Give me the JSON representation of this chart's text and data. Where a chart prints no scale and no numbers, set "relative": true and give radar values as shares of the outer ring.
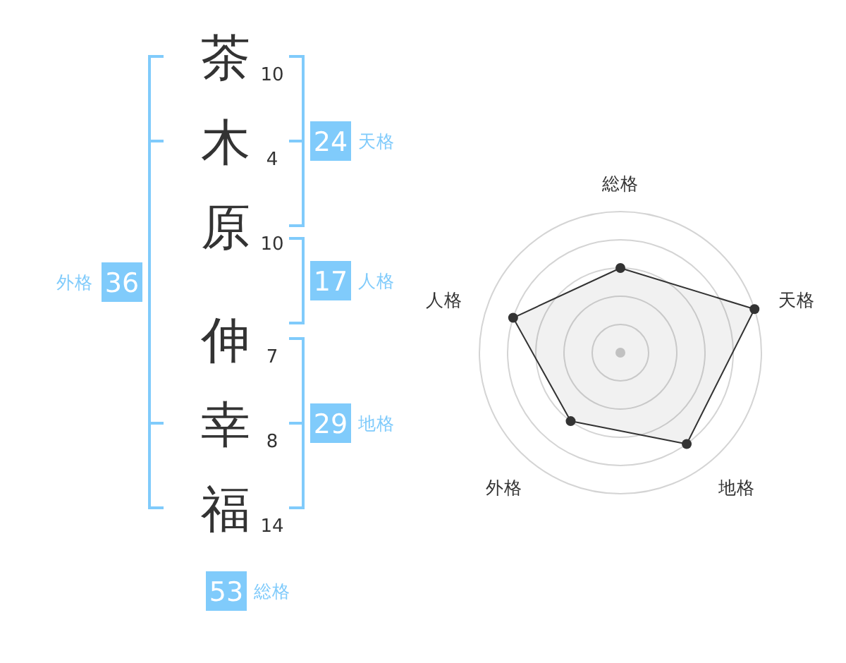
{
  "chart_data": [
    {
      "type": "other",
      "categories": [
        "茶",
        "木",
        "原",
        "伸",
        "幸",
        "福"
      ],
      "values": [
        10,
        4,
        10,
        7,
        8,
        14
      ],
      "data_labels": true,
      "annotations": [
        "24",
        "天格",
        "17",
        "人格",
        "29",
        "地格",
        "36",
        "外格",
        "53",
        "総格"
      ]
    },
    {
      "type": "radar",
      "categories": [
        "総格",
        "天格",
        "地格",
        "外格",
        "人格"
      ],
      "relative": true,
      "series": [
        {
          "color": "#333333",
          "values": [
            0.6,
            1,
            0.8,
            0.6,
            0.8
          ]
        }
      ],
      "grid": true,
      "marker": "circle"
    }
  ]
}
